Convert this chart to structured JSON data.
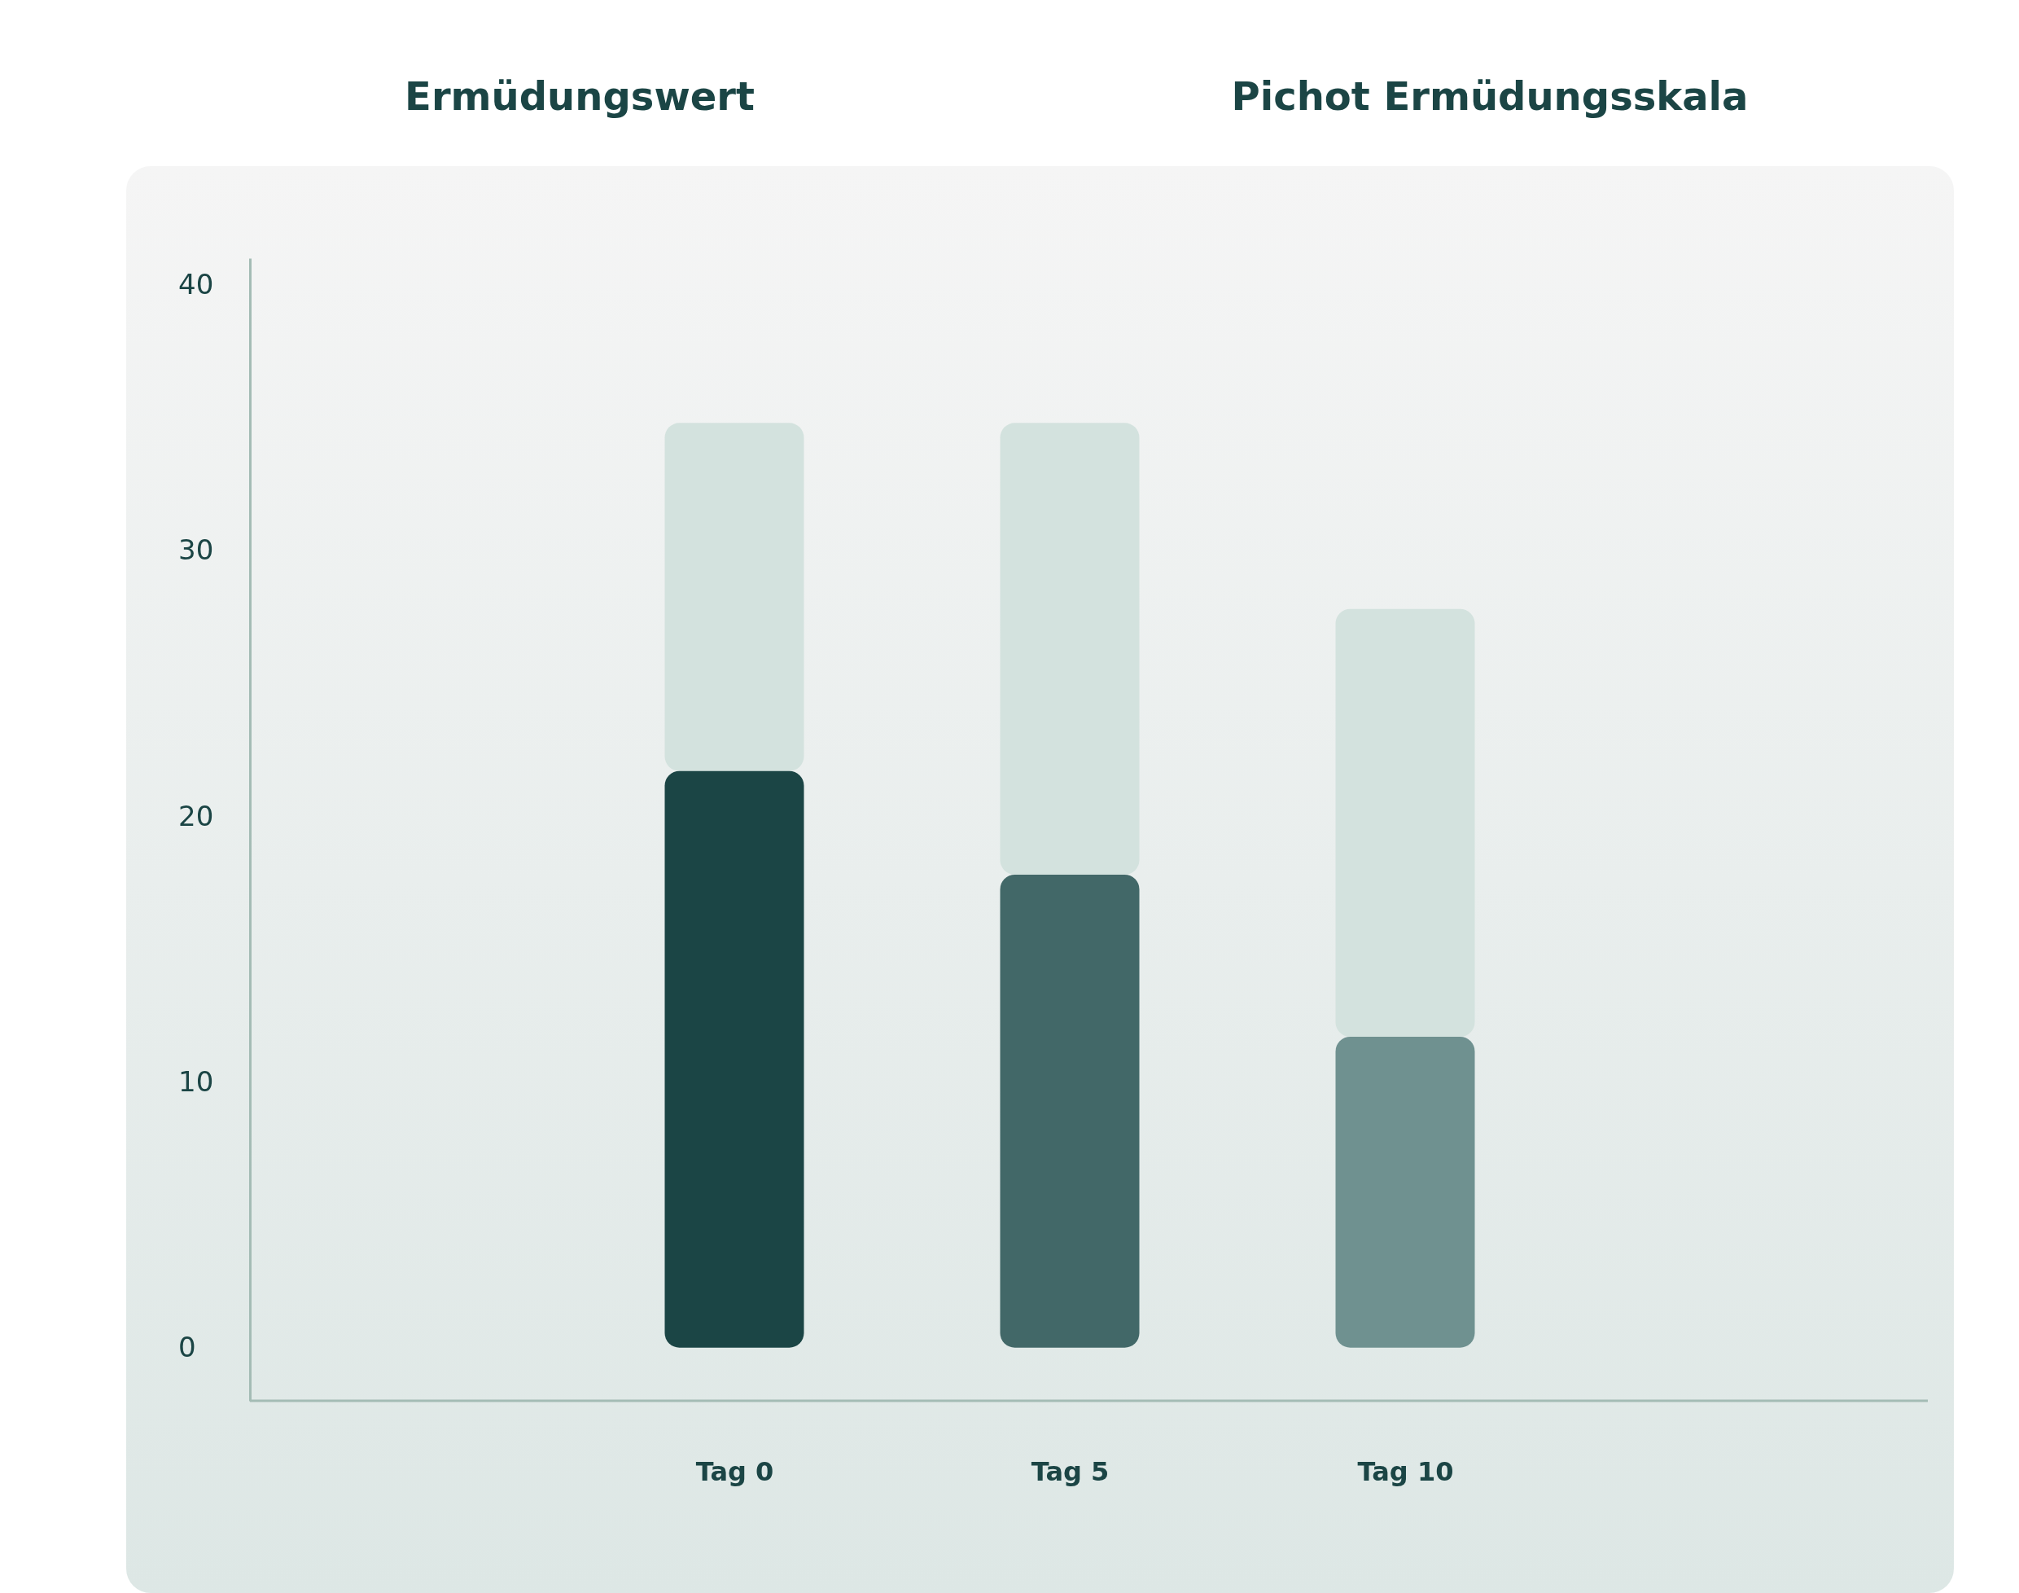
{
  "chart_data": {
    "type": "bar",
    "stacked": true,
    "categories": [
      "Tag 0",
      "Tag 5",
      "Tag 10"
    ],
    "series": [
      {
        "colors": [
          "#1b4545",
          "#426868",
          "#6f9190"
        ],
        "values": [
          21.7,
          17.8,
          11.7
        ]
      },
      {
        "color": "#d3e2de",
        "values": [
          13.1,
          17,
          16.1
        ]
      }
    ],
    "ylim": [
      -2,
      41
    ],
    "yticks": [
      0,
      10,
      20,
      30,
      40
    ],
    "annotations": [
      "Ermüdungswert",
      "Pichot Ermüdungsskala"
    ]
  }
}
